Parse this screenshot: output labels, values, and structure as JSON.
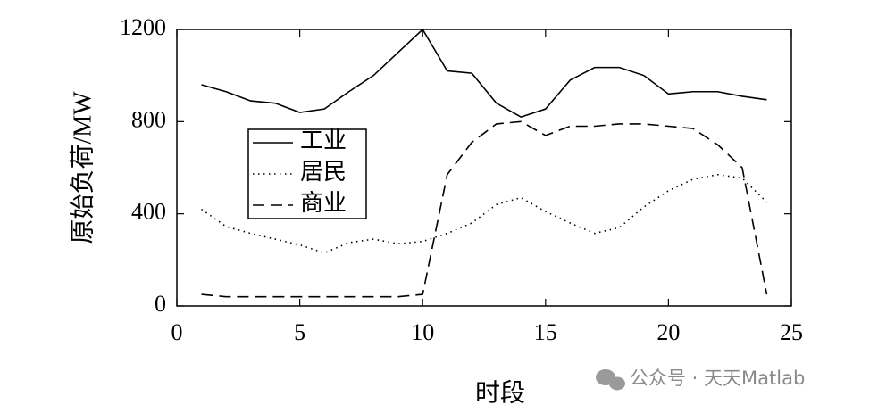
{
  "chart_data": {
    "type": "line",
    "xlabel": "时段",
    "ylabel": "原始负荷/MW",
    "x": [
      1,
      2,
      3,
      4,
      5,
      6,
      7,
      8,
      9,
      10,
      11,
      12,
      13,
      14,
      15,
      16,
      17,
      18,
      19,
      20,
      21,
      22,
      23,
      24
    ],
    "series": [
      {
        "name": "工业",
        "color": "#000000",
        "linestyle": "solid",
        "values": [
          960,
          930,
          890,
          880,
          840,
          855,
          930,
          1000,
          1100,
          1200,
          1020,
          1010,
          880,
          820,
          855,
          980,
          1035,
          1035,
          1000,
          920,
          930,
          930,
          910,
          895
        ]
      },
      {
        "name": "居民",
        "color": "#000000",
        "linestyle": "dotted",
        "values": [
          420,
          345,
          315,
          290,
          265,
          230,
          275,
          290,
          270,
          280,
          315,
          360,
          440,
          470,
          410,
          360,
          315,
          340,
          430,
          500,
          550,
          570,
          555,
          450
        ]
      },
      {
        "name": "商业",
        "color": "#000000",
        "linestyle": "dashed",
        "values": [
          50,
          40,
          40,
          40,
          40,
          40,
          40,
          40,
          40,
          50,
          570,
          710,
          790,
          800,
          740,
          780,
          780,
          790,
          790,
          780,
          770,
          700,
          600,
          50
        ]
      }
    ],
    "xlim": [
      0,
      25
    ],
    "xticks": [
      0,
      5,
      10,
      15,
      20,
      25
    ],
    "ylim": [
      0,
      1200
    ],
    "yticks": [
      0,
      400,
      800,
      1200
    ],
    "legend": "upper left",
    "watermark": "公众号 · 天天Matlab"
  }
}
